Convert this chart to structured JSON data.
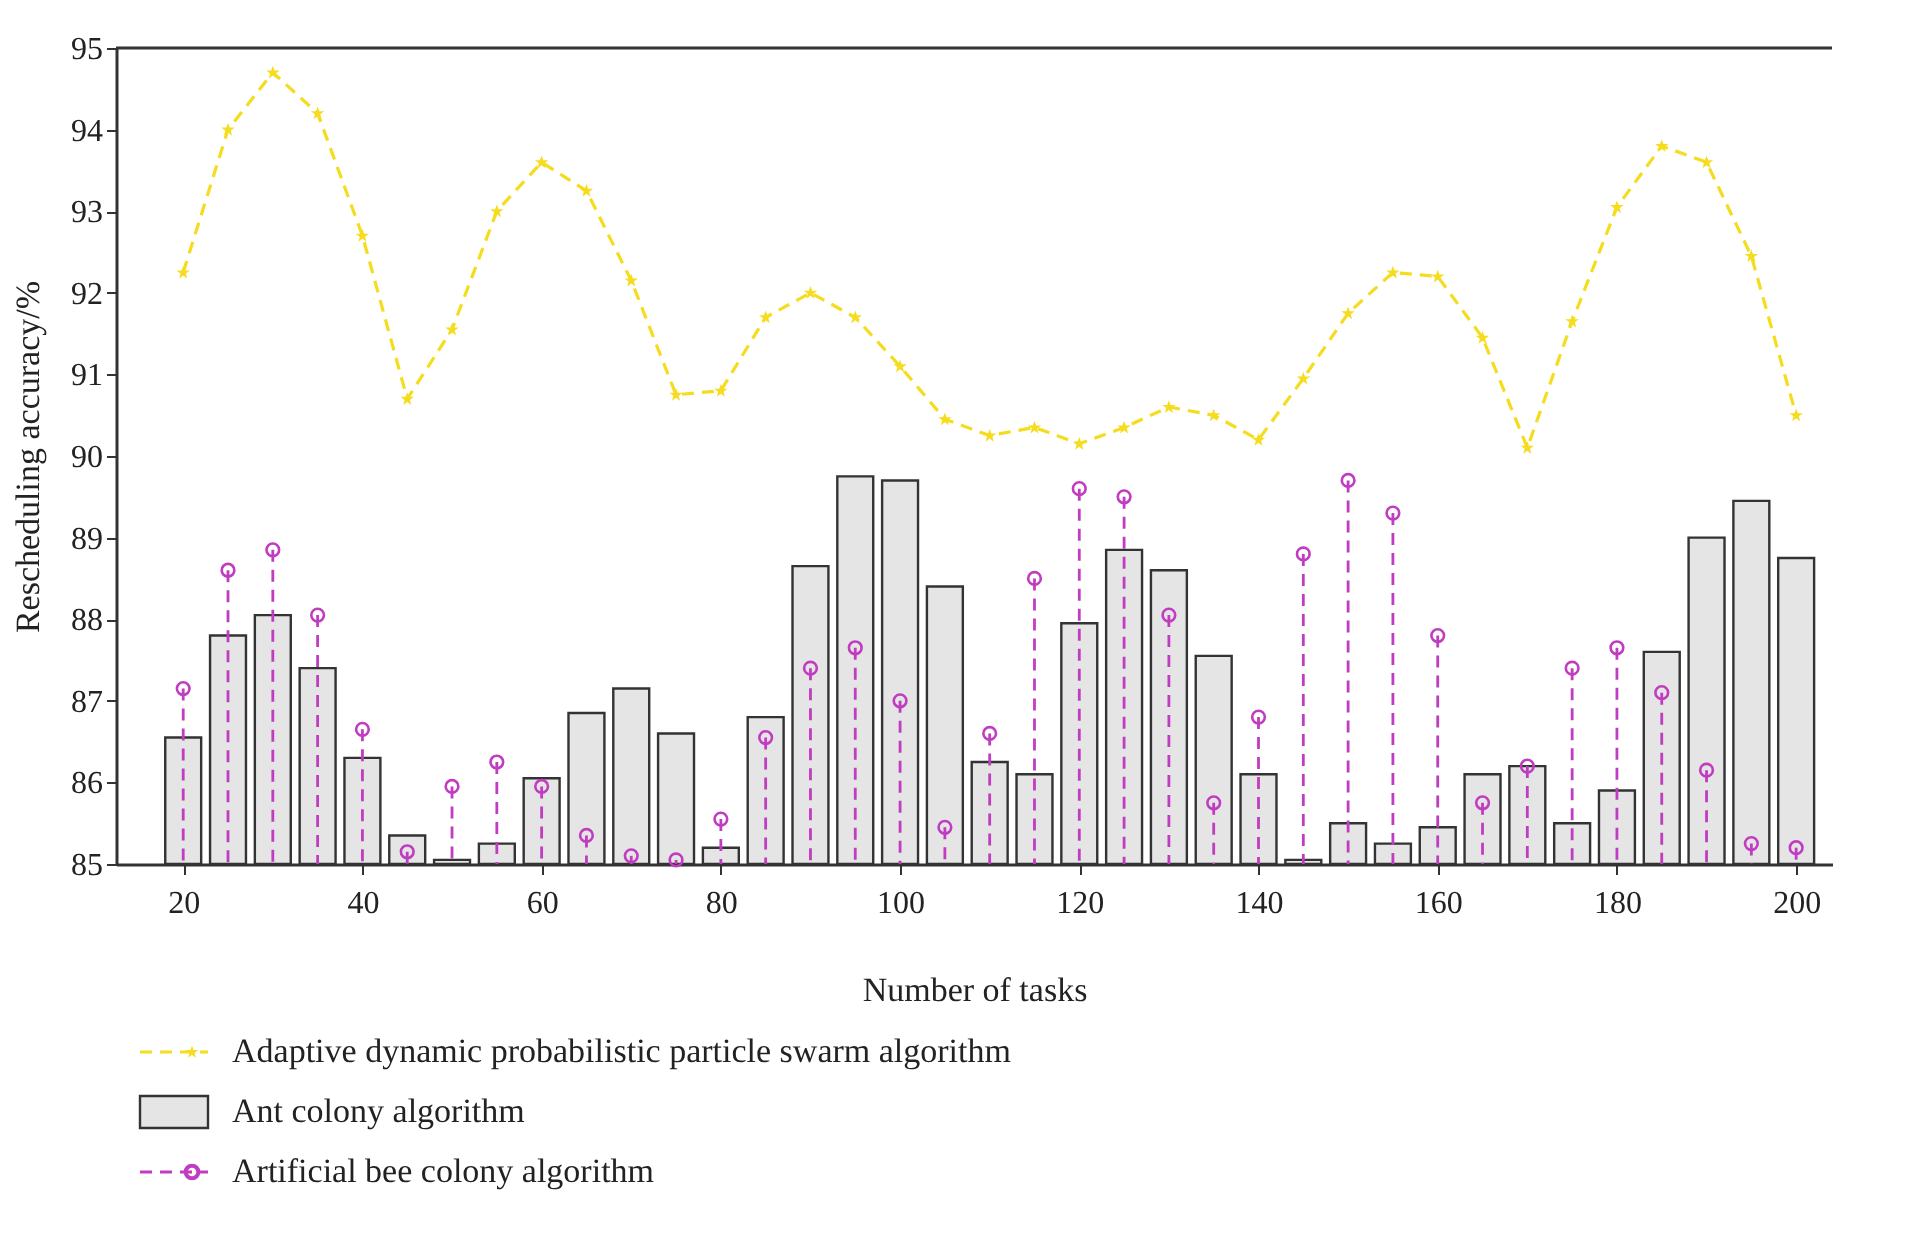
{
  "chart_data": {
    "type": "bar",
    "xlabel": "Number of tasks",
    "ylabel": "Rescheduling accuracy/%",
    "x": [
      20,
      25,
      30,
      35,
      40,
      45,
      50,
      55,
      60,
      65,
      70,
      75,
      80,
      85,
      90,
      95,
      100,
      105,
      110,
      115,
      120,
      125,
      130,
      135,
      140,
      145,
      150,
      155,
      160,
      165,
      170,
      175,
      180,
      185,
      190,
      195,
      200
    ],
    "xlim": [
      12.5,
      204
    ],
    "xticks": [
      20,
      40,
      60,
      80,
      100,
      120,
      140,
      160,
      180,
      200
    ],
    "ylim": [
      85,
      95
    ],
    "yticks": [
      85,
      86,
      87,
      88,
      89,
      90,
      91,
      92,
      93,
      94,
      95
    ],
    "grid": false,
    "legend": "bottom",
    "series": [
      {
        "name": "Adaptive dynamic probabilistic particle swarm algorithm",
        "type": "line",
        "color": "#f5dc1e",
        "marker": "star",
        "line_style": "dashed",
        "values": [
          92.25,
          94.0,
          94.7,
          94.2,
          92.7,
          90.7,
          91.55,
          93.0,
          93.6,
          93.25,
          92.15,
          90.75,
          90.8,
          91.7,
          92.0,
          91.7,
          91.1,
          90.45,
          90.25,
          90.35,
          90.15,
          90.35,
          90.6,
          90.5,
          90.2,
          90.95,
          91.75,
          92.25,
          92.2,
          91.45,
          90.1,
          91.65,
          93.05,
          93.8,
          93.6,
          92.45,
          90.5
        ]
      },
      {
        "name": "Ant colony algorithm",
        "color": "#e5e5e5",
        "values": [
          86.55,
          87.8,
          88.05,
          87.4,
          86.3,
          85.35,
          85.05,
          85.25,
          86.05,
          86.85,
          87.15,
          86.6,
          85.2,
          86.8,
          88.65,
          89.75,
          89.7,
          88.4,
          86.25,
          86.1,
          87.95,
          88.85,
          88.6,
          87.55,
          86.1,
          85.05,
          85.5,
          85.25,
          85.45,
          86.1,
          86.2,
          85.5,
          85.9,
          87.6,
          89.0,
          89.45,
          88.75
        ]
      },
      {
        "name": "Artificial bee colony algorithm",
        "type": "lollipop",
        "color": "#c03cc0",
        "marker": "circle",
        "line_style": "dashed",
        "values": [
          87.15,
          88.6,
          88.85,
          88.05,
          86.65,
          85.15,
          85.95,
          86.25,
          85.95,
          85.35,
          85.1,
          85.05,
          85.55,
          86.55,
          87.4,
          87.65,
          87.0,
          85.45,
          86.6,
          88.5,
          89.6,
          89.5,
          88.05,
          85.75,
          86.8,
          88.8,
          89.7,
          89.3,
          87.8,
          85.75,
          86.2,
          87.4,
          87.65,
          87.1,
          86.15,
          85.25,
          85.2
        ]
      }
    ]
  }
}
